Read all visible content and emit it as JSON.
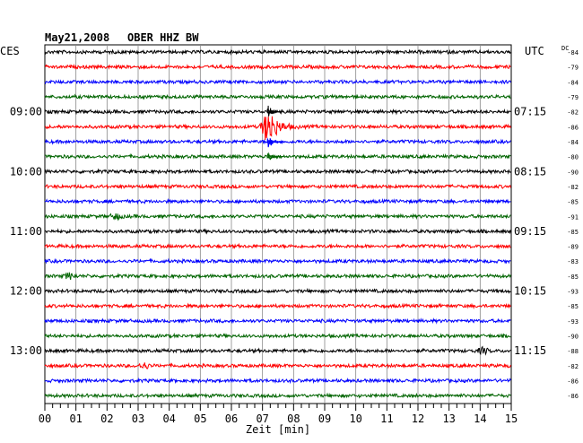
{
  "header": {
    "date": "May21,2008",
    "station": "OBER HHZ BW",
    "left_zone": "CES",
    "right_zone": "UTC",
    "dc_label": "DC"
  },
  "chart_data": {
    "type": "line",
    "title": "May21,2008 OBER HHZ BW",
    "xlabel": "Zeit [min]",
    "xlim": [
      0,
      15
    ],
    "x_ticks": [
      "00",
      "01",
      "02",
      "03",
      "04",
      "05",
      "06",
      "07",
      "08",
      "09",
      "10",
      "11",
      "12",
      "13",
      "14",
      "15"
    ],
    "trace_count": 24,
    "trace_colors": [
      "#000000",
      "#ff0000",
      "#0000ff",
      "#006400"
    ],
    "left_time_labels": [
      {
        "trace": 4,
        "label": "09:00"
      },
      {
        "trace": 8,
        "label": "10:00"
      },
      {
        "trace": 12,
        "label": "11:00"
      },
      {
        "trace": 16,
        "label": "12:00"
      },
      {
        "trace": 20,
        "label": "13:00"
      }
    ],
    "right_time_labels": [
      {
        "trace": 4,
        "label": "07:15"
      },
      {
        "trace": 8,
        "label": "08:15"
      },
      {
        "trace": 12,
        "label": "09:15"
      },
      {
        "trace": 16,
        "label": "10:15"
      },
      {
        "trace": 20,
        "label": "11:15"
      }
    ],
    "dc_offsets": [
      "-84",
      "-79",
      "-84",
      "-79",
      "-82",
      "-86",
      "-84",
      "-80",
      "-90",
      "-82",
      "-85",
      "-91",
      "-85",
      "-89",
      "-83",
      "-85",
      "-93",
      "-85",
      "-93",
      "-90",
      "-88",
      "-82",
      "-86",
      "-86"
    ],
    "events": [
      {
        "trace": 5,
        "minute": 7.2,
        "amplitude": "large"
      },
      {
        "trace": 11,
        "minute": 2.3,
        "amplitude": "small"
      },
      {
        "trace": 15,
        "minute": 0.8,
        "amplitude": "small"
      },
      {
        "trace": 20,
        "minute": 14.1,
        "amplitude": "small"
      },
      {
        "trace": 21,
        "minute": 3.2,
        "amplitude": "small"
      }
    ]
  }
}
